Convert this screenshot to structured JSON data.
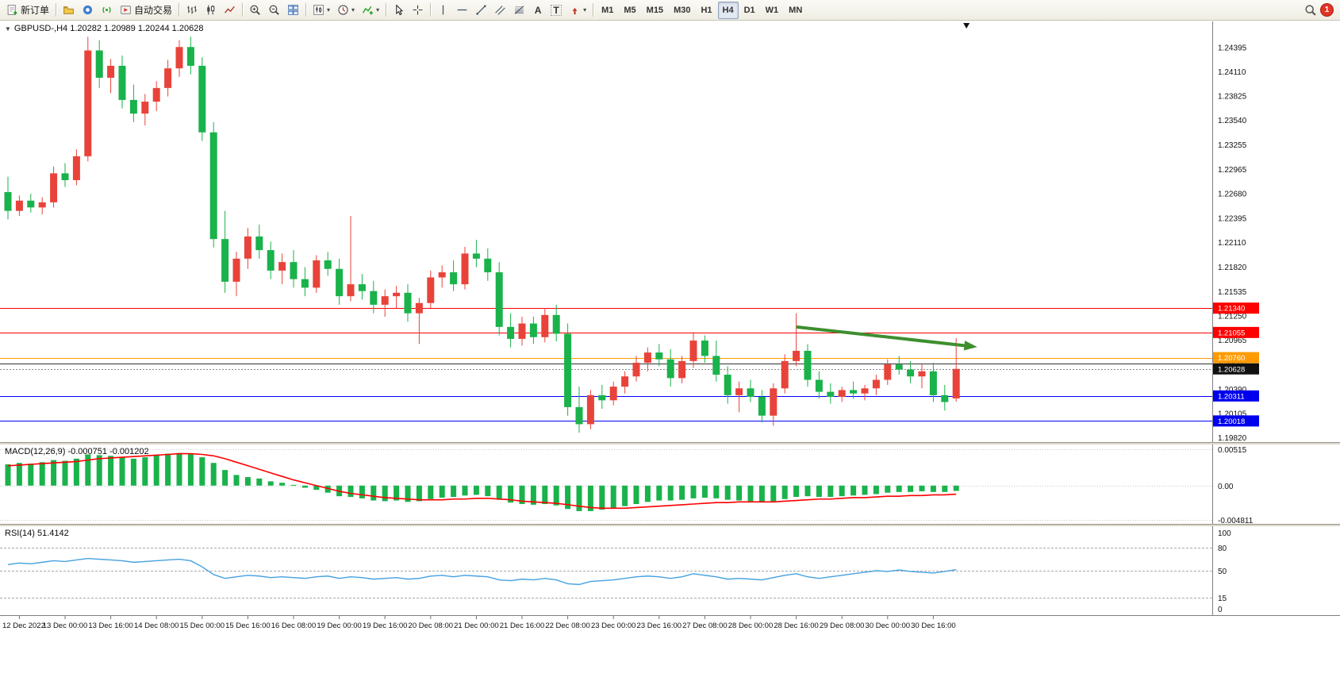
{
  "toolbar": {
    "new_order_label": "新订单",
    "autotrading_label": "自动交易",
    "timeframes": [
      "M1",
      "M5",
      "M15",
      "M30",
      "H1",
      "H4",
      "D1",
      "W1",
      "MN"
    ],
    "active_timeframe": "H4",
    "notification_count": "1"
  },
  "colors": {
    "bull": "#e8433a",
    "bear": "#19b24b",
    "line_red": "#ff0000",
    "line_blue": "#0000ff",
    "line_orange": "#ff9b00",
    "rsi_blue": "#45a1e0",
    "arrow_green": "#3d8f2f"
  },
  "chart_data": [
    {
      "type": "candlestick",
      "symbol": "GBPUSD-",
      "timeframe": "H4",
      "label": "GBPUSD-,H4 1.20282 1.20989 1.20244 1.20628",
      "ohlc": {
        "open": "1.20282",
        "high": "1.20989",
        "low": "1.20244",
        "close": "1.20628"
      },
      "bull_color": "#e8433a",
      "bear_color": "#19b24b",
      "y_range": [
        1.1977,
        1.247
      ],
      "y_ticks": [
        "1.24395",
        "1.24110",
        "1.23825",
        "1.23540",
        "1.23255",
        "1.22965",
        "1.22680",
        "1.22395",
        "1.22110",
        "1.21820",
        "1.21535",
        "1.21250",
        "1.20965",
        "1.20680",
        "1.20390",
        "1.20105",
        "1.19820"
      ],
      "x_tick_labels": [
        "12 Dec 2022",
        "13 Dec 00:00",
        "13 Dec 16:00",
        "14 Dec 08:00",
        "15 Dec 00:00",
        "15 Dec 16:00",
        "16 Dec 08:00",
        "19 Dec 00:00",
        "19 Dec 16:00",
        "20 Dec 08:00",
        "21 Dec 00:00",
        "21 Dec 16:00",
        "22 Dec 08:00",
        "23 Dec 00:00",
        "23 Dec 16:00",
        "27 Dec 08:00",
        "28 Dec 00:00",
        "28 Dec 16:00",
        "29 Dec 08:00",
        "30 Dec 00:00",
        "30 Dec 16:00"
      ],
      "x_tick_start_index": 1,
      "x_tick_every": 4,
      "bar_marker_index": 83.9,
      "levels": [
        {
          "price": 1.2134,
          "color": "#ff0000",
          "label": "1.21340",
          "label_bg": "#ff0000"
        },
        {
          "price": 1.21055,
          "color": "#ff0000",
          "label": "1.21055",
          "label_bg": "#ff0000"
        },
        {
          "price": 1.2076,
          "color": "#ff9b00",
          "label": "1.20760",
          "label_bg": "#ff9b00"
        },
        {
          "price": 1.2069,
          "color": "#333333"
        },
        {
          "price": 1.20628,
          "color": "#888888",
          "style": "dotted",
          "label": "1.20628",
          "label_bg": "#111111"
        },
        {
          "price": 1.20311,
          "color": "#0000ff",
          "label": "1.20311",
          "label_bg": "#0000ee"
        },
        {
          "price": 1.20018,
          "color": "#0000ff",
          "label": "1.20018",
          "label_bg": "#0000ee"
        }
      ],
      "annotations": [
        {
          "type": "arrow",
          "from_index": 69,
          "from_price": 1.2112,
          "to_index": 84.5,
          "to_price": 1.2089,
          "color": "#3d8f2f"
        }
      ],
      "candles": [
        [
          1.227,
          1.2288,
          1.2238,
          1.2248
        ],
        [
          1.2248,
          1.2266,
          1.2242,
          1.226
        ],
        [
          1.226,
          1.2268,
          1.2246,
          1.2252
        ],
        [
          1.2252,
          1.2264,
          1.2244,
          1.2258
        ],
        [
          1.2258,
          1.23,
          1.2252,
          1.2292
        ],
        [
          1.2292,
          1.2304,
          1.2276,
          1.2284
        ],
        [
          1.2284,
          1.232,
          1.2278,
          1.2312
        ],
        [
          1.2312,
          1.2452,
          1.2306,
          1.2436
        ],
        [
          1.2436,
          1.2448,
          1.2392,
          1.2404
        ],
        [
          1.2404,
          1.2426,
          1.2386,
          1.2418
        ],
        [
          1.2418,
          1.243,
          1.2368,
          1.2378
        ],
        [
          1.2378,
          1.2396,
          1.2352,
          1.2362
        ],
        [
          1.2362,
          1.2385,
          1.2348,
          1.2376
        ],
        [
          1.2376,
          1.24,
          1.2365,
          1.2392
        ],
        [
          1.2392,
          1.2425,
          1.2382,
          1.2415
        ],
        [
          1.2415,
          1.2448,
          1.2405,
          1.244
        ],
        [
          1.244,
          1.2452,
          1.2408,
          1.2418
        ],
        [
          1.2418,
          1.2428,
          1.233,
          1.234
        ],
        [
          1.234,
          1.2352,
          1.2205,
          1.2215
        ],
        [
          1.2215,
          1.2248,
          1.2152,
          1.2165
        ],
        [
          1.2165,
          1.22,
          1.2148,
          1.2192
        ],
        [
          1.2192,
          1.2228,
          1.218,
          1.2218
        ],
        [
          1.2218,
          1.2232,
          1.2192,
          1.2202
        ],
        [
          1.2202,
          1.2212,
          1.2168,
          1.2178
        ],
        [
          1.2178,
          1.2198,
          1.2162,
          1.2188
        ],
        [
          1.2188,
          1.2202,
          1.2158,
          1.2168
        ],
        [
          1.2168,
          1.2182,
          1.2148,
          1.2158
        ],
        [
          1.2158,
          1.2196,
          1.2152,
          1.219
        ],
        [
          1.219,
          1.22,
          1.2172,
          1.218
        ],
        [
          1.218,
          1.2192,
          1.2138,
          1.2148
        ],
        [
          1.2148,
          1.2242,
          1.2142,
          1.2162
        ],
        [
          1.2162,
          1.2174,
          1.2144,
          1.2154
        ],
        [
          1.2154,
          1.2166,
          1.2128,
          1.2138
        ],
        [
          1.2138,
          1.2156,
          1.2124,
          1.2148
        ],
        [
          1.2148,
          1.216,
          1.2134,
          1.2152
        ],
        [
          1.2152,
          1.2162,
          1.2118,
          1.2128
        ],
        [
          1.2128,
          1.2146,
          1.2092,
          1.214
        ],
        [
          1.214,
          1.2178,
          1.2134,
          1.217
        ],
        [
          1.217,
          1.2184,
          1.2158,
          1.2176
        ],
        [
          1.2176,
          1.219,
          1.2154,
          1.2162
        ],
        [
          1.2162,
          1.2206,
          1.2156,
          1.2198
        ],
        [
          1.2198,
          1.2214,
          1.2182,
          1.2192
        ],
        [
          1.2192,
          1.2204,
          1.2166,
          1.2176
        ],
        [
          1.2176,
          1.2188,
          1.2102,
          1.2112
        ],
        [
          1.2112,
          1.2128,
          1.2088,
          1.2098
        ],
        [
          1.2098,
          1.2124,
          1.209,
          1.2116
        ],
        [
          1.2116,
          1.2124,
          1.2092,
          1.21
        ],
        [
          1.21,
          1.2134,
          1.2094,
          1.2126
        ],
        [
          1.2126,
          1.2138,
          1.2095,
          1.2104
        ],
        [
          1.2104,
          1.2116,
          1.2008,
          1.2018
        ],
        [
          1.2018,
          1.2042,
          1.1988,
          1.1998
        ],
        [
          1.1998,
          1.2038,
          1.1992,
          1.2032
        ],
        [
          1.2032,
          1.2044,
          1.2016,
          1.2026
        ],
        [
          1.2026,
          1.2048,
          1.202,
          1.2042
        ],
        [
          1.2042,
          1.206,
          1.2034,
          1.2054
        ],
        [
          1.2054,
          1.2078,
          1.2048,
          1.207
        ],
        [
          1.207,
          1.2088,
          1.206,
          1.2082
        ],
        [
          1.2082,
          1.2092,
          1.2066,
          1.2074
        ],
        [
          1.2074,
          1.2086,
          1.2042,
          1.2052
        ],
        [
          1.2052,
          1.2078,
          1.2046,
          1.2072
        ],
        [
          1.2072,
          1.2106,
          1.2064,
          1.2096
        ],
        [
          1.2096,
          1.2102,
          1.207,
          1.2078
        ],
        [
          1.2078,
          1.2096,
          1.2048,
          1.2056
        ],
        [
          1.2056,
          1.2066,
          1.2022,
          1.2032
        ],
        [
          1.2032,
          1.2048,
          1.2012,
          1.204
        ],
        [
          1.204,
          1.205,
          1.2024,
          1.203
        ],
        [
          1.203,
          1.2038,
          1.2,
          1.2008
        ],
        [
          1.2008,
          1.2046,
          1.1996,
          1.204
        ],
        [
          1.204,
          1.208,
          1.2034,
          1.2072
        ],
        [
          1.2072,
          1.2128,
          1.2066,
          1.2084
        ],
        [
          1.2084,
          1.2092,
          1.2042,
          1.205
        ],
        [
          1.205,
          1.206,
          1.2028,
          1.2036
        ],
        [
          1.2036,
          1.2046,
          1.2022,
          1.203
        ],
        [
          1.203,
          1.2042,
          1.2024,
          1.2038
        ],
        [
          1.2038,
          1.2048,
          1.2028,
          1.2034
        ],
        [
          1.2034,
          1.2044,
          1.2026,
          1.204
        ],
        [
          1.204,
          1.2056,
          1.2032,
          1.205
        ],
        [
          1.205,
          1.2074,
          1.2044,
          1.2068
        ],
        [
          1.2068,
          1.2078,
          1.2056,
          1.2062
        ],
        [
          1.2062,
          1.2072,
          1.2046,
          1.2054
        ],
        [
          1.2054,
          1.2068,
          1.204,
          1.206
        ],
        [
          1.206,
          1.207,
          1.2024,
          1.2032
        ],
        [
          1.2032,
          1.2044,
          1.2014,
          1.2024
        ],
        [
          1.20282,
          1.20989,
          1.20244,
          1.20628
        ]
      ]
    },
    {
      "type": "histogram_line",
      "name": "MACD",
      "label": "MACD(12,26,9) -0.000751 -0.001202",
      "macd_value": "-0.000751",
      "signal_value": "-0.001202",
      "hist_color": "#19b24b",
      "signal_color": "#ff0000",
      "y_range": [
        -0.0054,
        0.0058
      ],
      "y_ticks": [
        {
          "v": 0.00515,
          "label": "0.00515"
        },
        {
          "v": 0,
          "label": "0.00"
        },
        {
          "v": -0.004811,
          "label": "-0.004811"
        }
      ],
      "values_hist": [
        0.003,
        0.0032,
        0.0031,
        0.0033,
        0.0036,
        0.0035,
        0.0038,
        0.0044,
        0.0043,
        0.0042,
        0.004,
        0.0038,
        0.004,
        0.0043,
        0.0045,
        0.0046,
        0.0045,
        0.004,
        0.0032,
        0.0022,
        0.0015,
        0.0012,
        0.001,
        0.0006,
        0.0004,
        0.0001,
        -0.0003,
        -0.0006,
        -0.001,
        -0.0015,
        -0.0016,
        -0.0018,
        -0.0021,
        -0.0022,
        -0.0021,
        -0.0023,
        -0.0022,
        -0.0019,
        -0.0017,
        -0.0016,
        -0.0014,
        -0.0013,
        -0.0015,
        -0.002,
        -0.0024,
        -0.0026,
        -0.0027,
        -0.0026,
        -0.0028,
        -0.0033,
        -0.0036,
        -0.0036,
        -0.0034,
        -0.0032,
        -0.0029,
        -0.0026,
        -0.0023,
        -0.0021,
        -0.0021,
        -0.002,
        -0.0018,
        -0.0017,
        -0.0018,
        -0.002,
        -0.0021,
        -0.0022,
        -0.0023,
        -0.0022,
        -0.0019,
        -0.0016,
        -0.0015,
        -0.0016,
        -0.0016,
        -0.0015,
        -0.0014,
        -0.0013,
        -0.0012,
        -0.001,
        -0.0009,
        -0.0009,
        -0.0008,
        -0.0009,
        -0.0009,
        -0.000751
      ],
      "values_signal": [
        0.0028,
        0.0029,
        0.003,
        0.0031,
        0.0032,
        0.0033,
        0.0034,
        0.0036,
        0.0038,
        0.0039,
        0.004,
        0.0041,
        0.0042,
        0.0043,
        0.0044,
        0.0045,
        0.0045,
        0.0044,
        0.0042,
        0.0038,
        0.0033,
        0.0028,
        0.0023,
        0.0018,
        0.0013,
        0.0008,
        0.0004,
        0.0,
        -0.0004,
        -0.0008,
        -0.0011,
        -0.0013,
        -0.0015,
        -0.0017,
        -0.0018,
        -0.0019,
        -0.002,
        -0.002,
        -0.002,
        -0.0019,
        -0.0019,
        -0.0018,
        -0.0018,
        -0.0019,
        -0.002,
        -0.0022,
        -0.0023,
        -0.0024,
        -0.0025,
        -0.0027,
        -0.0029,
        -0.0031,
        -0.0032,
        -0.0032,
        -0.0032,
        -0.0031,
        -0.003,
        -0.0029,
        -0.0028,
        -0.0027,
        -0.0026,
        -0.0025,
        -0.0024,
        -0.0024,
        -0.0023,
        -0.0023,
        -0.0023,
        -0.0023,
        -0.0022,
        -0.0021,
        -0.002,
        -0.0019,
        -0.0019,
        -0.0018,
        -0.0017,
        -0.0017,
        -0.0016,
        -0.0015,
        -0.0015,
        -0.0014,
        -0.0014,
        -0.0013,
        -0.0013,
        -0.001202
      ]
    },
    {
      "type": "line",
      "name": "RSI",
      "label": "RSI(14) 51.4142",
      "rsi_value": "51.4142",
      "line_color": "#45a1e0",
      "levels": [
        80,
        50,
        15
      ],
      "y_range": [
        -8,
        108
      ],
      "y_ticks": [
        {
          "v": 100,
          "label": "100"
        },
        {
          "v": 80,
          "label": "80"
        },
        {
          "v": 50,
          "label": "50"
        },
        {
          "v": 15,
          "label": "15"
        },
        {
          "v": 0,
          "label": "0"
        }
      ],
      "values": [
        58,
        60,
        59,
        61,
        63,
        62,
        64,
        66,
        65,
        64,
        63,
        61,
        62,
        63,
        64,
        65,
        63,
        55,
        45,
        40,
        42,
        44,
        43,
        41,
        42,
        41,
        40,
        42,
        43,
        40,
        42,
        41,
        39,
        40,
        41,
        39,
        40,
        43,
        44,
        42,
        44,
        43,
        42,
        38,
        37,
        39,
        38,
        40,
        38,
        33,
        32,
        36,
        37,
        38,
        40,
        42,
        43,
        42,
        40,
        42,
        46,
        44,
        42,
        39,
        40,
        39,
        38,
        41,
        44,
        46,
        42,
        40,
        42,
        44,
        46,
        48,
        50,
        49,
        51,
        49,
        48,
        47,
        49,
        51.4142
      ]
    }
  ]
}
